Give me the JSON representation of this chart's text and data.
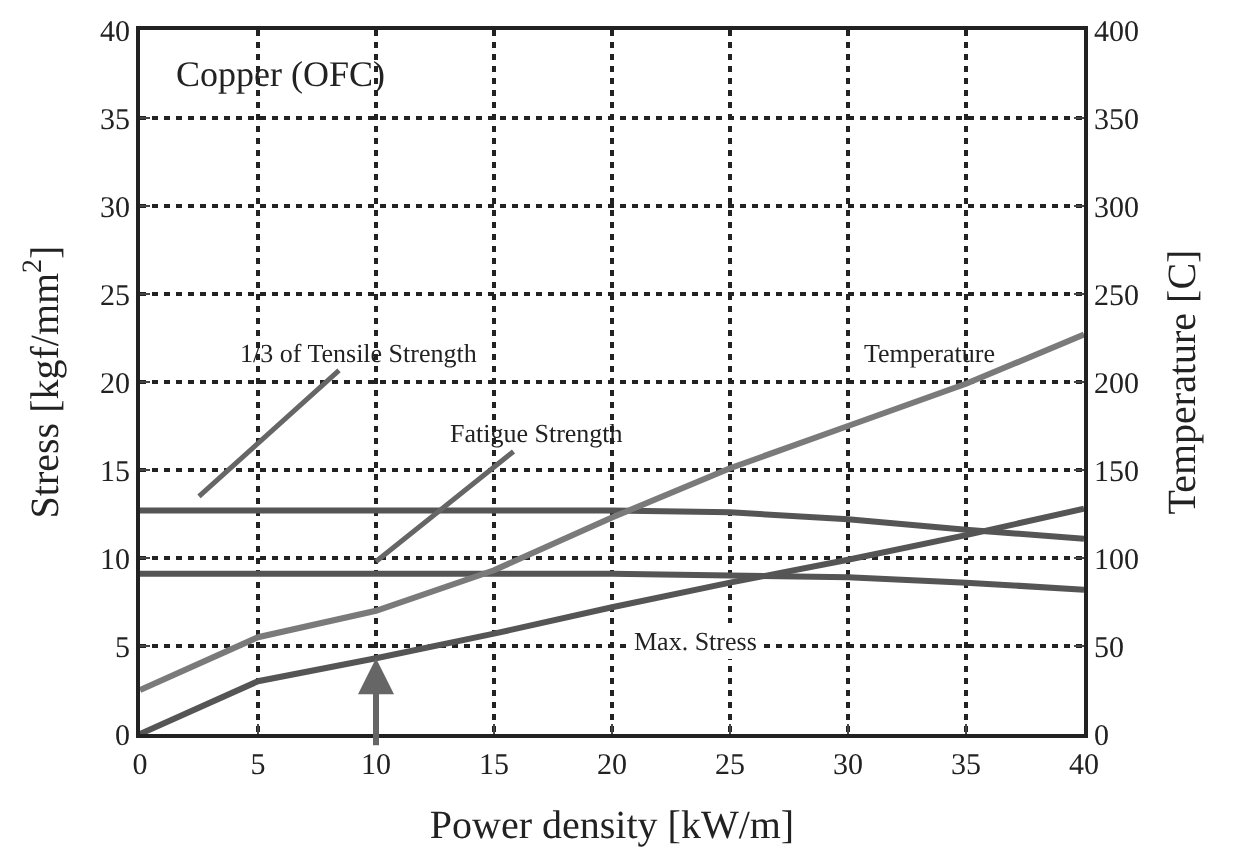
{
  "chart_data": {
    "type": "line",
    "xlabel": "Power density [kW/m]",
    "ylabel": "Stress [kgf/mm$^{2}$]",
    "y2label": "Temperature [C]",
    "x": [
      0,
      5,
      10,
      15,
      20,
      25,
      30,
      35,
      40
    ],
    "series": [
      {
        "color": "#7a7a7a",
        "axis": "y2",
        "values": [
          25,
          55,
          70,
          93,
          123,
          151,
          175,
          199,
          227
        ]
      },
      {
        "color": "#555555",
        "values": [
          12.7,
          12.7,
          12.7,
          12.7,
          12.7,
          12.6,
          12.2,
          11.6,
          11.1
        ]
      },
      {
        "color": "#555555",
        "values": [
          9.1,
          9.1,
          9.1,
          9.1,
          9.1,
          9.0,
          8.9,
          8.6,
          8.2
        ]
      },
      {
        "color": "#555555",
        "values": [
          0,
          3.0,
          4.3,
          5.7,
          7.2,
          8.6,
          9.9,
          11.3,
          12.8
        ]
      }
    ],
    "xlim": [
      0,
      40
    ],
    "xticks": [
      0,
      5,
      10,
      15,
      20,
      25,
      30,
      35,
      40
    ],
    "ylim": [
      0,
      40
    ],
    "yticks": [
      0,
      5,
      10,
      15,
      20,
      25,
      30,
      35,
      40
    ],
    "y2lim": [
      0,
      400
    ],
    "y2ticks": [
      0,
      50,
      100,
      150,
      200,
      250,
      300,
      350,
      400
    ],
    "grid": true,
    "marker": "none",
    "line_style": "solid",
    "annotations": [
      "Copper (OFC)",
      "1/3 of Tensile Strength",
      "Fatigue Strength",
      "Temperature",
      "Max. Stress"
    ]
  }
}
